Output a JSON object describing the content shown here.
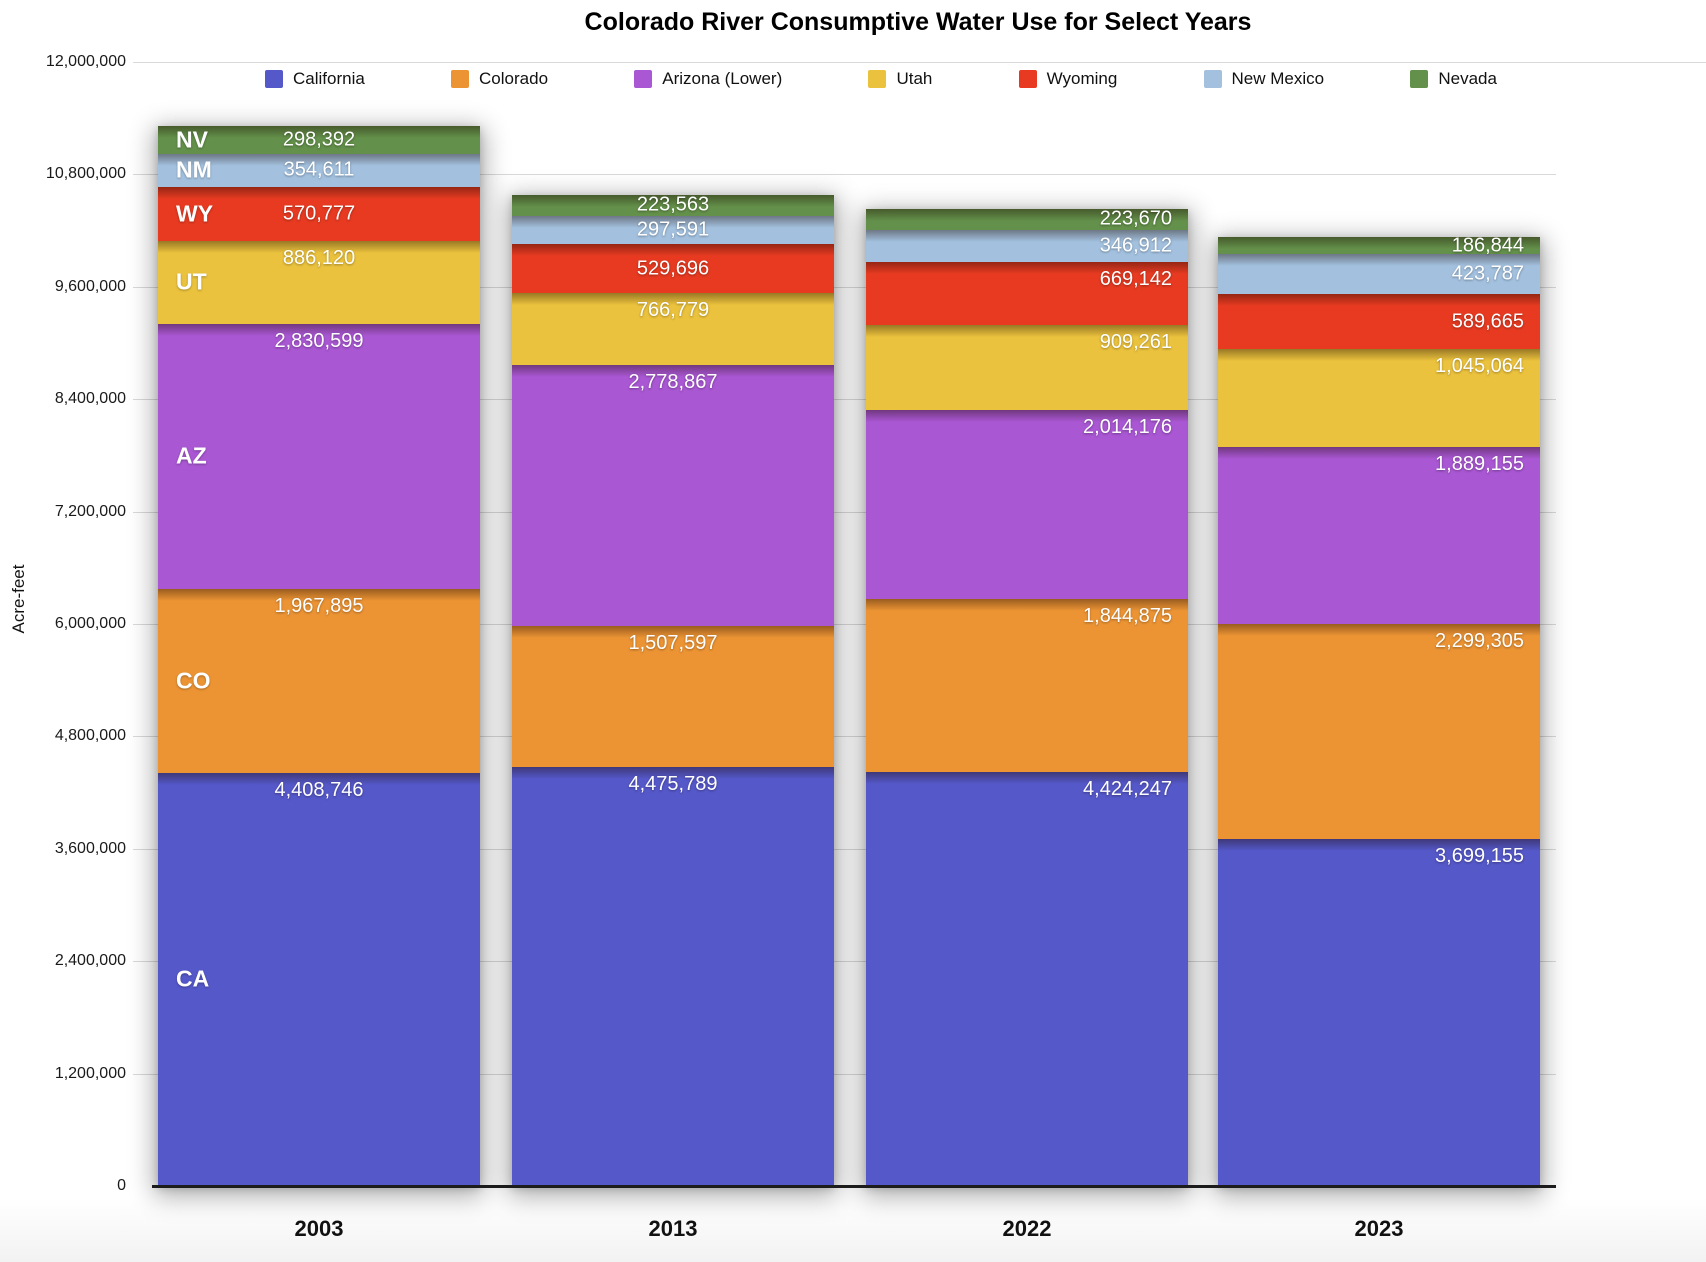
{
  "chart_data": {
    "type": "bar",
    "stacked": true,
    "title": "Colorado River Consumptive Water Use for Select Years",
    "xlabel": "",
    "ylabel": "Acre-feet",
    "ylim": [
      0,
      12000000
    ],
    "ytick_interval": 1200000,
    "ytick_labels": [
      "0",
      "1,200,000",
      "2,400,000",
      "3,600,000",
      "4,800,000",
      "6,000,000",
      "7,200,000",
      "8,400,000",
      "9,600,000",
      "10,800,000",
      "12,000,000"
    ],
    "grid": true,
    "legend_position": "top",
    "categories": [
      "2003",
      "2013",
      "2022",
      "2023"
    ],
    "series": [
      {
        "name": "California",
        "abbr": "CA",
        "color": "#5558C9",
        "values": [
          4408746,
          4475789,
          4424247,
          3699155
        ]
      },
      {
        "name": "Colorado",
        "abbr": "CO",
        "color": "#EC9434",
        "values": [
          1967895,
          1507597,
          1844875,
          2299305
        ]
      },
      {
        "name": "Arizona (Lower)",
        "abbr": "AZ",
        "color": "#A957D3",
        "values": [
          2830599,
          2778867,
          2014176,
          1889155
        ]
      },
      {
        "name": "Utah",
        "abbr": "UT",
        "color": "#EBC23D",
        "values": [
          886120,
          766779,
          909261,
          1045064
        ]
      },
      {
        "name": "Wyoming",
        "abbr": "WY",
        "color": "#E73A21",
        "values": [
          570777,
          529696,
          669142,
          589665
        ]
      },
      {
        "name": "New Mexico",
        "abbr": "NM",
        "color": "#A3C1DF",
        "values": [
          354611,
          297591,
          346912,
          423787
        ]
      },
      {
        "name": "Nevada",
        "abbr": "NV",
        "color": "#63904A",
        "values": [
          298392,
          223563,
          223670,
          186844
        ]
      }
    ]
  }
}
